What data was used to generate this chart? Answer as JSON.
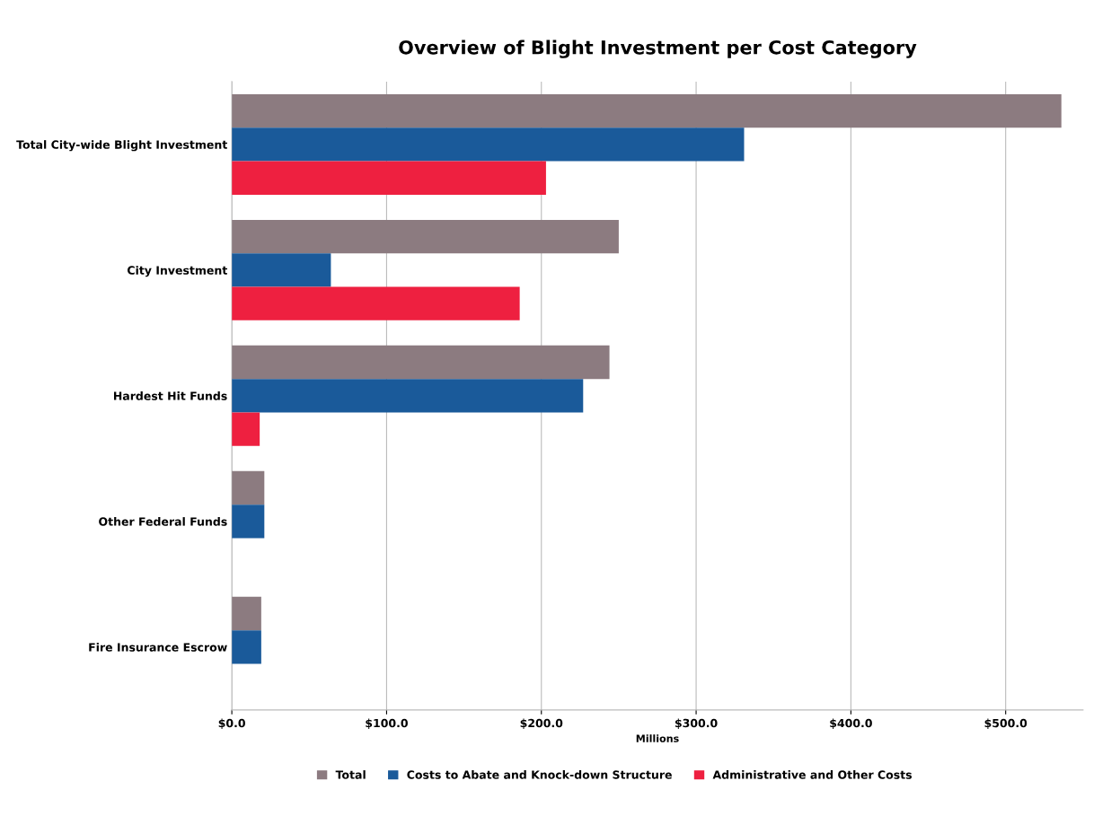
{
  "chart_data": {
    "type": "bar",
    "orientation": "horizontal",
    "title": "Overview of Blight Investment per Cost Category",
    "xlabel": "Millions",
    "categories": [
      "Total City-wide Blight Investment",
      "City Investment",
      "Hardest Hit Funds",
      "Other Federal Funds",
      "Fire Insurance Escrow"
    ],
    "series": [
      {
        "name": "Total",
        "color": "#8c7b80",
        "values": [
          536,
          250,
          244,
          21,
          19
        ]
      },
      {
        "name": "Costs to Abate and Knock-down Structure",
        "color": "#1a5a9a",
        "values": [
          331,
          64,
          227,
          21,
          19
        ]
      },
      {
        "name": "Administrative and Other Costs",
        "color": "#ee2040",
        "values": [
          203,
          186,
          18,
          null,
          null
        ]
      }
    ],
    "xlim": [
      0,
      550
    ],
    "xticks": [
      {
        "value": 0,
        "label": "$0.0"
      },
      {
        "value": 100,
        "label": "$100.0"
      },
      {
        "value": 200,
        "label": "$200.0"
      },
      {
        "value": 300,
        "label": "$300.0"
      },
      {
        "value": 400,
        "label": "$400.0"
      },
      {
        "value": 500,
        "label": "$500.0"
      }
    ],
    "grid": "x",
    "legend": "bottom"
  }
}
